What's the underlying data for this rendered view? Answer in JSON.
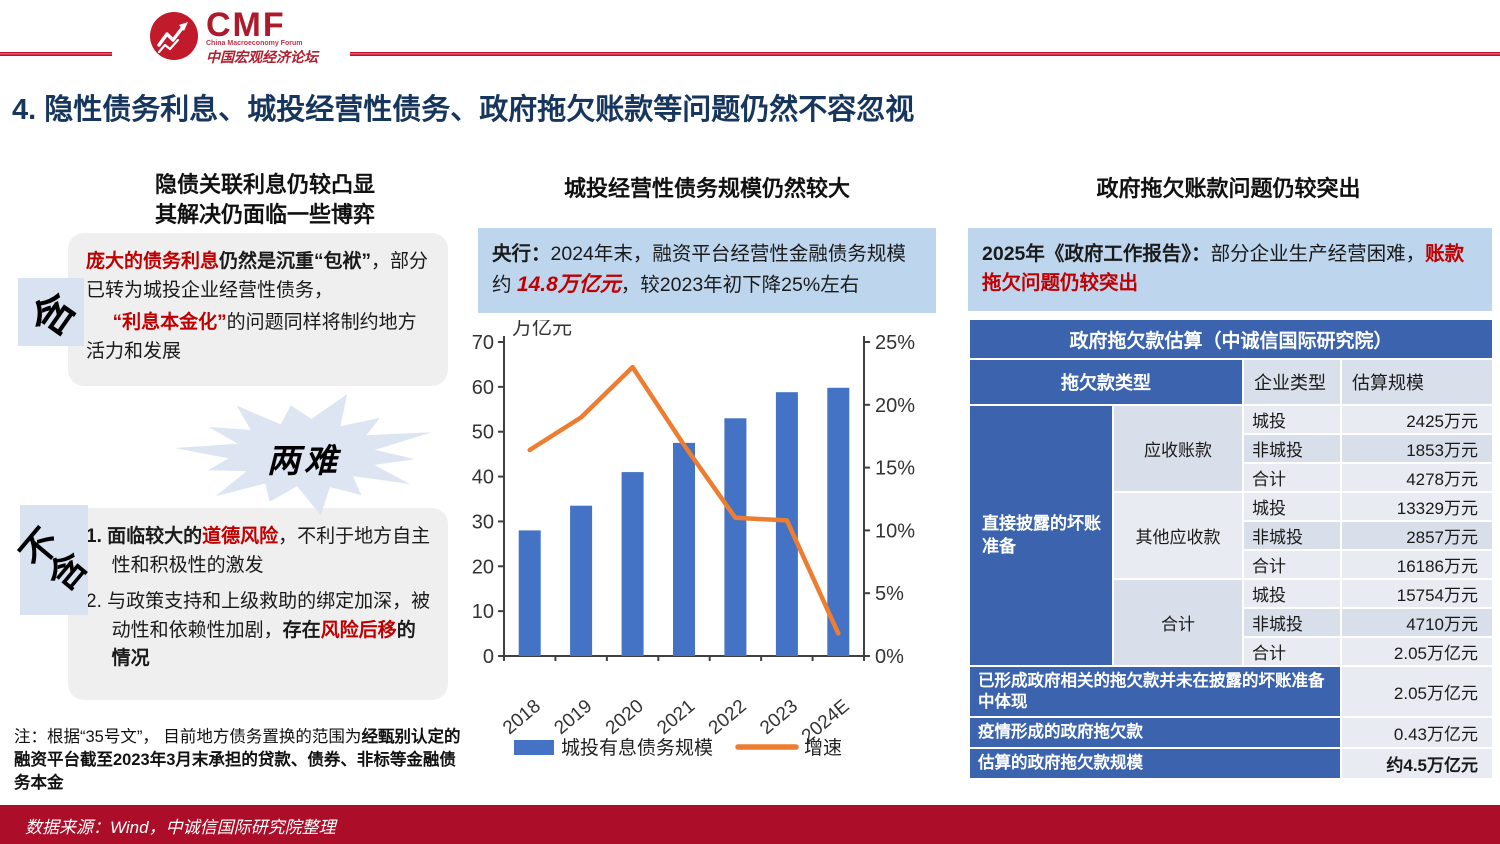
{
  "header": {
    "logo": {
      "acronym": "CMF",
      "subtitle_en": "China Macroeconomy Forum",
      "subtitle_cn": "中国宏观经济论坛"
    },
    "title": "4. 隐性债务利息、城投经营性债务、政府拖欠账款等问题仍然不容忽视"
  },
  "left": {
    "heading_line1": "隐债关联利息仍较凸显",
    "heading_line2": "其解决仍面临一些博弈",
    "badge_top": "含",
    "badge_bottom_line1": "不",
    "badge_bottom_line2": "含",
    "starburst_label": "两难",
    "box1": {
      "red1": "庞大的债务利息",
      "bold1": "仍然是沉重“包袱”",
      "mid": "，部分已转为城投企业经营性债务，",
      "red2": "“利息本金化”",
      "tail": "的问题同样将制约地方活力和发展"
    },
    "box2": {
      "item1_bold": "1. 面临较大的",
      "item1_red": "道德风险",
      "item1_tail": "，不利于地方自主性和积极性的激发",
      "item2_lead": "2. 与政策支持和上级救助的绑定加深，被动性和依赖性加剧，",
      "item2_bold": "存在",
      "item2_red": "风险后移",
      "item2_tail": "的情况"
    },
    "note_lead": "注：根据“35号文”， 目前地方债务置换的范围为",
    "note_bold": "经甄别认定的融资平台截至2023年3月末承担的贷款、债券、非标等金融债务本金"
  },
  "middle": {
    "heading": "城投经营性债务规模仍然较大",
    "callout": {
      "lead_bold": "央行：",
      "body1": "2024年末，融资平台经营性金融债务规模约 ",
      "highlight": "14.8万亿元",
      "body2": "，较2023年初下降25%左右"
    }
  },
  "chart_data": {
    "type": "bar",
    "unit_label": "万亿元",
    "categories": [
      "2018",
      "2019",
      "2020",
      "2021",
      "2022",
      "2023",
      "2024E"
    ],
    "series": [
      {
        "name": "城投有息债务规模",
        "type": "bar",
        "axis": "left",
        "color": "#4472C4",
        "values": [
          28,
          33.5,
          41,
          47.5,
          53,
          58.8,
          59.8
        ]
      },
      {
        "name": "增速",
        "type": "line",
        "axis": "right",
        "color": "#ED7D31",
        "values": [
          16.4,
          19,
          23,
          16.8,
          11,
          10.8,
          1.8
        ]
      }
    ],
    "left_axis": {
      "min": 0,
      "max": 70,
      "step": 10
    },
    "right_axis": {
      "min": 0,
      "max": 25,
      "step": 5,
      "suffix": "%"
    },
    "grid": false,
    "legend_position": "bottom"
  },
  "right": {
    "heading": "政府拖欠账款问题仍较突出",
    "callout": {
      "lead_bold": "2025年《政府工作报告》：",
      "body1": "部分企业生产经营困难，",
      "highlight": "账款拖欠问题仍较突出"
    },
    "table": {
      "title": "政府拖欠款估算（中诚信国际研究院）",
      "headers": [
        "拖欠款类型",
        "企业类型",
        "估算规模"
      ],
      "group_label": "直接披露的坏账准备",
      "groups": [
        {
          "label": "应收账款",
          "rows": [
            [
              "城投",
              "2425万元"
            ],
            [
              "非城投",
              "1853万元"
            ],
            [
              "合计",
              "4278万元"
            ]
          ]
        },
        {
          "label": "其他应收款",
          "rows": [
            [
              "城投",
              "13329万元"
            ],
            [
              "非城投",
              "2857万元"
            ],
            [
              "合计",
              "16186万元"
            ]
          ]
        },
        {
          "label": "合计",
          "rows": [
            [
              "城投",
              "15754万元"
            ],
            [
              "非城投",
              "4710万元"
            ],
            [
              "合计",
              "2.05万亿元"
            ]
          ]
        }
      ],
      "footer_rows": [
        {
          "label": "已形成政府相关的拖欠款并未在披露的坏账准备中体现",
          "value": "2.05万亿元",
          "bold": false
        },
        {
          "label": "疫情形成的政府拖欠款",
          "value": "0.43万亿元",
          "bold": false
        },
        {
          "label": "估算的政府拖欠款规模",
          "value": "约4.5万亿元",
          "bold": true
        }
      ]
    }
  },
  "footer": {
    "source": "数据来源：Wind，中诚信国际研究院整理"
  },
  "colors": {
    "title_navy": "#17365d",
    "accent_red": "#c00000",
    "bar_blue": "#4472C4",
    "line_orange": "#ED7D31",
    "table_blue": "#3b63ae",
    "callout_blue": "#bdd6ee",
    "footer_red": "#ac0d28",
    "rule_red": "#c0112e"
  }
}
